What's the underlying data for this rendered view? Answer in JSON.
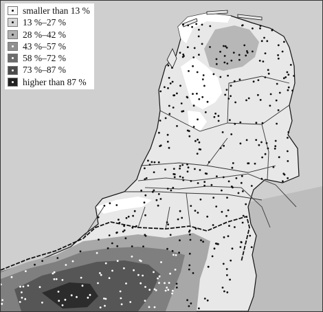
{
  "legend": {
    "items": [
      {
        "label": "smaller than 13 %",
        "fill": "#f6f6f6",
        "dot": "#111111"
      },
      {
        "label": "13 %–27 %",
        "fill": "#d6d6d6",
        "dot": "#111111"
      },
      {
        "label": "28 %–42 %",
        "fill": "#b3b3b3",
        "dot": "#222222"
      },
      {
        "label": "43 %–57 %",
        "fill": "#8f8f8f",
        "dot": "#ffffff"
      },
      {
        "label": "58 %–72 %",
        "fill": "#6c6c6c",
        "dot": "#ffffff"
      },
      {
        "label": "73 %–87 %",
        "fill": "#4b4b4b",
        "dot": "#ffffff"
      },
      {
        "label": "higher than 87 %",
        "fill": "#222222",
        "dot": "#ffffff"
      }
    ]
  },
  "colors": {
    "land_low": "#e8e8e8",
    "water": "#ffffff",
    "outside": "#cfcfcf",
    "borders": "#111111"
  }
}
